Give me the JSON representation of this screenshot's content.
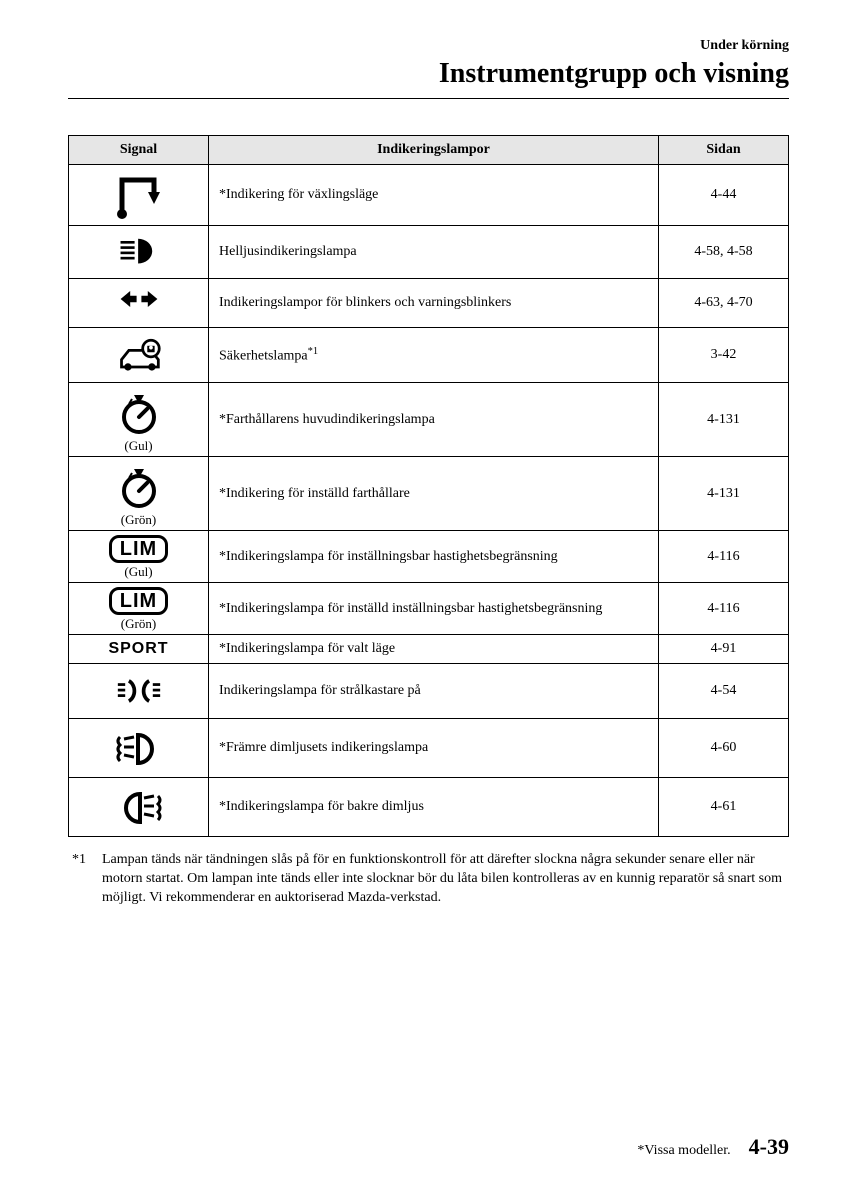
{
  "header": {
    "section": "Under körning",
    "title": "Instrumentgrupp och visning"
  },
  "table": {
    "columns": [
      "Signal",
      "Indikeringslampor",
      "Sidan"
    ],
    "rows": [
      {
        "iconKey": "shift",
        "sub": "",
        "star": true,
        "desc": "Indikering för växlingsläge",
        "page": "4-44"
      },
      {
        "iconKey": "highbeam",
        "sub": "",
        "star": false,
        "desc": "Helljusindikeringslampa",
        "page": "4-58, 4-58"
      },
      {
        "iconKey": "turn",
        "sub": "",
        "star": false,
        "desc": "Indikeringslampor för blinkers och varningsblinkers",
        "page": "4-63, 4-70"
      },
      {
        "iconKey": "security",
        "sub": "",
        "star": false,
        "desc": "Säkerhetslampa",
        "sup": "*1",
        "page": "3-42"
      },
      {
        "iconKey": "cruise",
        "sub": "(Gul)",
        "star": true,
        "desc": "Farthållarens huvudindikeringslampa",
        "page": "4-131"
      },
      {
        "iconKey": "cruise",
        "sub": "(Grön)",
        "star": true,
        "desc": "Indikering för inställd farthållare",
        "page": "4-131"
      },
      {
        "iconKey": "lim",
        "sub": "(Gul)",
        "star": true,
        "desc": "Indikeringslampa för inställningsbar hastighetsbegränsning",
        "page": "4-116"
      },
      {
        "iconKey": "lim",
        "sub": "(Grön)",
        "star": true,
        "desc": "Indikeringslampa för inställd inställningsbar hastighetsbegränsning",
        "page": "4-116"
      },
      {
        "iconKey": "sport",
        "sub": "",
        "star": true,
        "desc": "Indikeringslampa för valt läge",
        "page": "4-91"
      },
      {
        "iconKey": "lightson",
        "sub": "",
        "star": false,
        "desc": "Indikeringslampa för strålkastare på",
        "page": "4-54"
      },
      {
        "iconKey": "frontfog",
        "sub": "",
        "star": true,
        "desc": "Främre dimljusets indikeringslampa",
        "page": "4-60"
      },
      {
        "iconKey": "rearfog",
        "sub": "",
        "star": true,
        "desc": "Indikeringslampa för bakre dimljus",
        "page": "4-61"
      }
    ]
  },
  "footnote": {
    "key": "*1",
    "text": "Lampan tänds när tändningen slås på för en funktionskontroll för att därefter slockna några sekunder senare eller när motorn startat. Om lampan inte tänds eller inte slocknar bör du låta bilen kontrolleras av en kunnig reparatör så snart som möjligt. Vi rekommenderar en auktoriserad Mazda-verkstad."
  },
  "footer": {
    "note": "*Vissa modeller.",
    "page": "4-39"
  },
  "labels": {
    "lim": "LIM",
    "sport": "SPORT"
  }
}
